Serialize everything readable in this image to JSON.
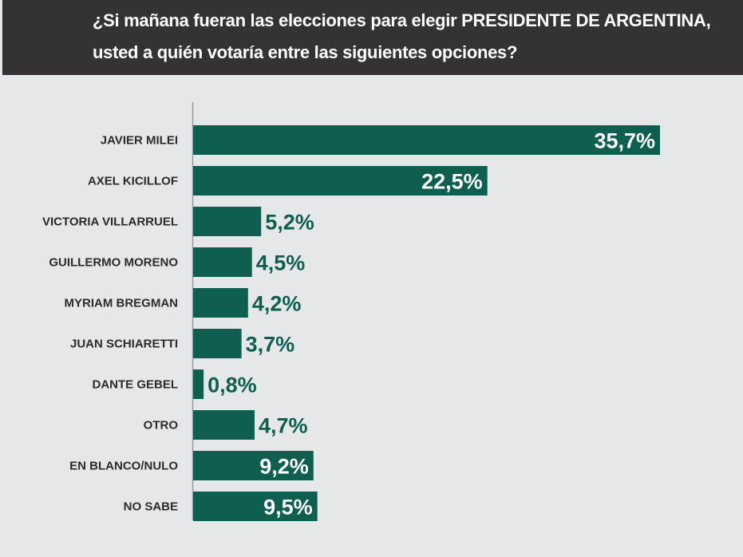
{
  "chart_data": {
    "type": "bar",
    "orientation": "horizontal",
    "title": "¿Si mañana fueran las elecciones para elegir PRESIDENTE DE ARGENTINA, usted a quién votaría entre las siguientes opciones?",
    "categories": [
      "JAVIER MILEI",
      "AXEL KICILLOF",
      "VICTORIA VILLARRUEL",
      "GUILLERMO MORENO",
      "MYRIAM BREGMAN",
      "JUAN SCHIARETTI",
      "DANTE GEBEL",
      "OTRO",
      "EN BLANCO/NULO",
      "NO SABE"
    ],
    "values": [
      35.7,
      22.5,
      5.2,
      4.5,
      4.2,
      3.7,
      0.8,
      4.7,
      9.2,
      9.5
    ],
    "labels": [
      "35,7%",
      "22,5%",
      "5,2%",
      "4,5%",
      "4,2%",
      "3,7%",
      "0,8%",
      "4,7%",
      "9,2%",
      "9,5%"
    ],
    "unit": "%",
    "xlim": [
      0,
      40
    ],
    "grid": false,
    "colors": {
      "bar": "#0e5f4f",
      "header": "#353233",
      "background": "#e6e7e9",
      "label_inside": "#ffffff",
      "label_outside": "#0e5f4f"
    }
  }
}
